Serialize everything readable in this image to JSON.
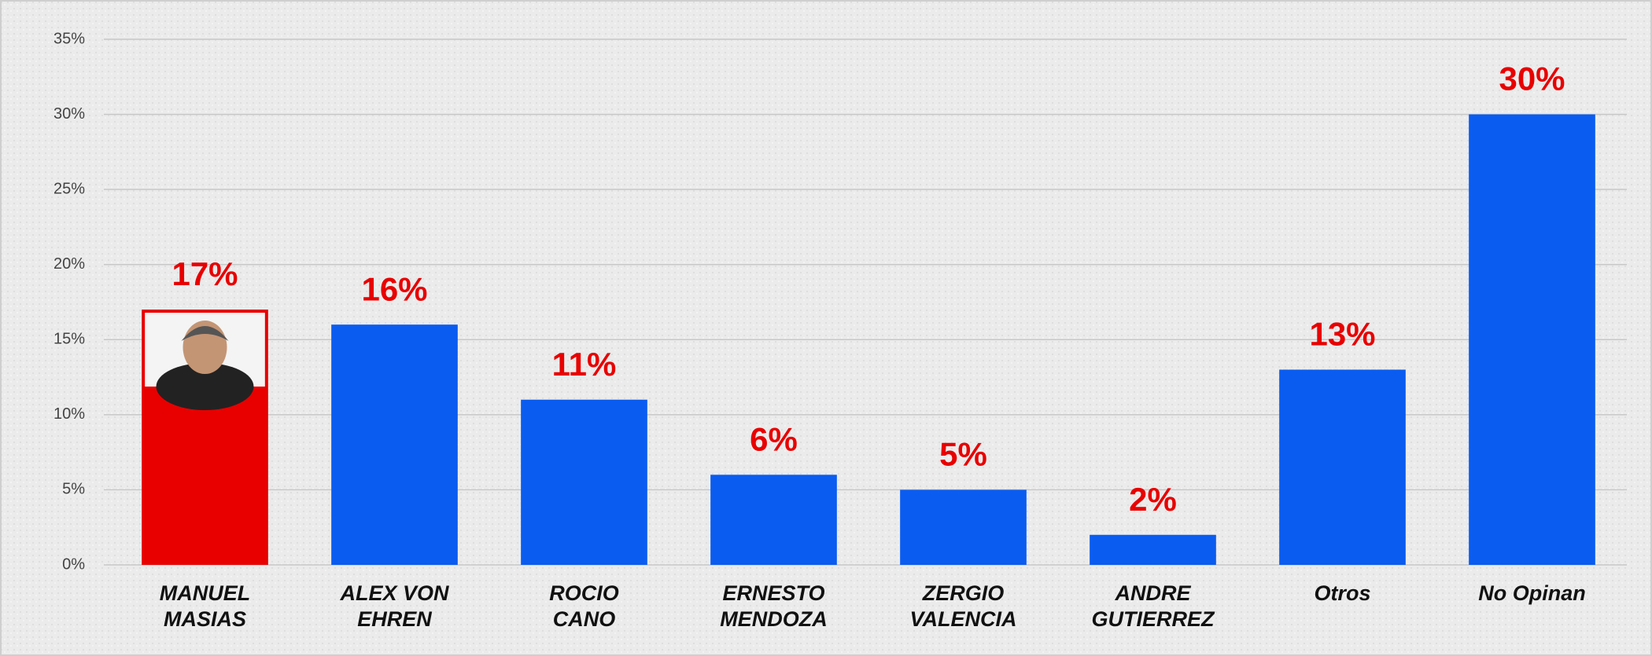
{
  "chart_data": {
    "type": "bar",
    "categories": [
      [
        "MANUEL",
        "MASIAS"
      ],
      [
        "ALEX VON",
        "EHREN"
      ],
      [
        "ROCIO",
        "CANO"
      ],
      [
        "ERNESTO",
        "MENDOZA"
      ],
      [
        "ZERGIO",
        "VALENCIA"
      ],
      [
        "ANDRE",
        "GUTIERREZ"
      ],
      [
        "Otros"
      ],
      [
        "No Opinan"
      ]
    ],
    "values": [
      17,
      16,
      11,
      6,
      5,
      2,
      13,
      30
    ],
    "value_labels": [
      "17%",
      "16%",
      "11%",
      "6%",
      "5%",
      "2%",
      "13%",
      "30%"
    ],
    "colors": [
      "#e80000",
      "#0a5cf0",
      "#0a5cf0",
      "#0a5cf0",
      "#0a5cf0",
      "#0a5cf0",
      "#0a5cf0",
      "#0a5cf0"
    ],
    "ylim": [
      0,
      35
    ],
    "yticks": [
      {
        "value": 0,
        "label": "0%"
      },
      {
        "value": 5,
        "label": "5%"
      },
      {
        "value": 10,
        "label": "10%"
      },
      {
        "value": 15,
        "label": "15%"
      },
      {
        "value": 20,
        "label": "20%"
      },
      {
        "value": 25,
        "label": "25%"
      },
      {
        "value": 30,
        "label": "30%"
      },
      {
        "value": 35,
        "label": "35%"
      }
    ],
    "grid": true
  }
}
